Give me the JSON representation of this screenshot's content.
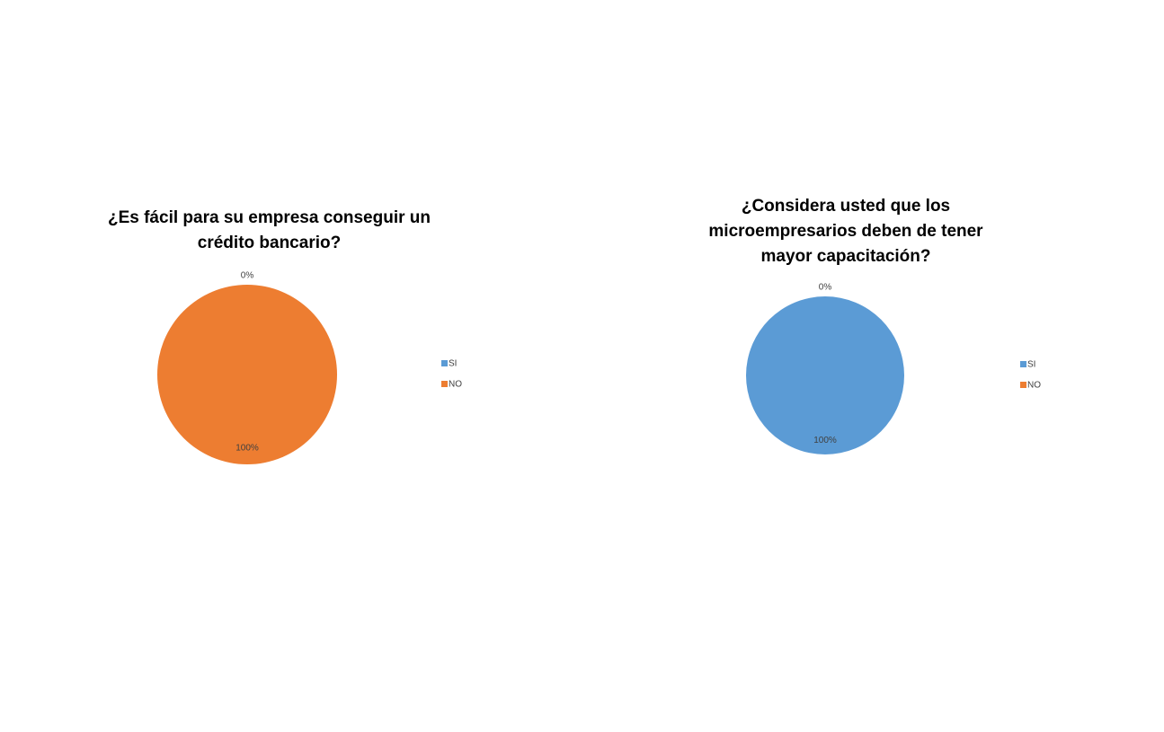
{
  "chart_data": [
    {
      "type": "pie",
      "title": "¿Es fácil para su empresa conseguir un crédito bancario?",
      "categories": [
        "SI",
        "NO"
      ],
      "values": [
        0,
        100
      ],
      "value_labels": [
        "0%",
        "100%"
      ],
      "colors": [
        "#5b9bd5",
        "#ed7d31"
      ],
      "legend": "right"
    },
    {
      "type": "pie",
      "title": "¿Considera usted que los microempresarios deben de tener mayor capacitación?",
      "categories": [
        "SI",
        "NO"
      ],
      "values": [
        100,
        0
      ],
      "value_labels": [
        "100%",
        "0%"
      ],
      "colors": [
        "#5b9bd5",
        "#ed7d31"
      ],
      "legend": "right"
    }
  ]
}
